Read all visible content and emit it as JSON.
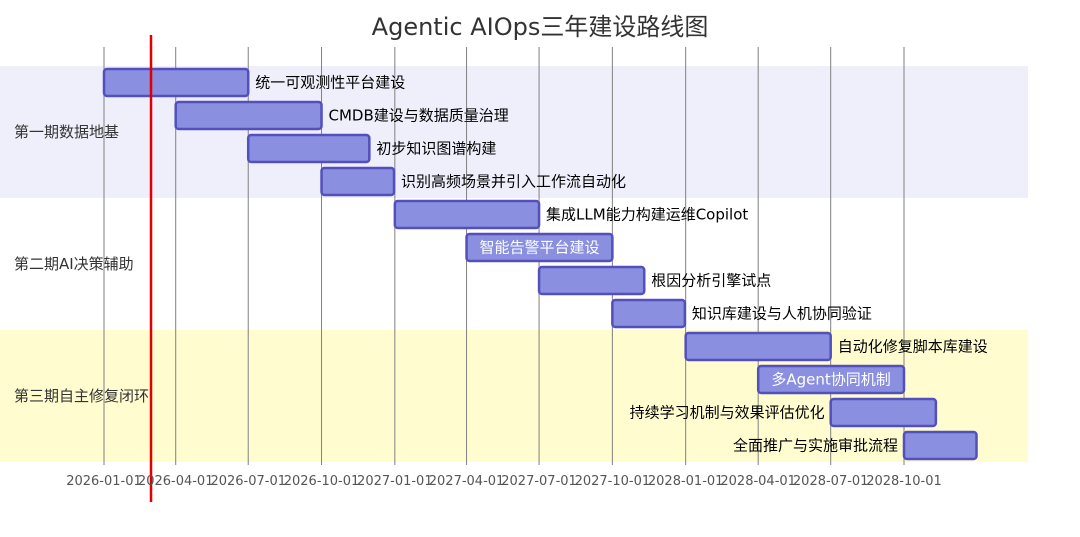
{
  "chart_data": {
    "type": "gantt",
    "title": "Agentic AIOps三年建设路线图",
    "today": "2026-03-01",
    "axis": {
      "start": "2026-01-01",
      "end": "2028-11-15",
      "ticks": [
        "2026-01-01",
        "2026-04-01",
        "2026-07-01",
        "2026-10-01",
        "2027-01-01",
        "2027-04-01",
        "2027-07-01",
        "2027-10-01",
        "2028-01-01",
        "2028-04-01",
        "2028-07-01",
        "2028-10-01"
      ]
    },
    "sections": [
      {
        "name": "第一期数据地基",
        "color": "#efeefb",
        "tasks": [
          {
            "name": "统一可观测性平台建设",
            "start": "2026-01-01",
            "end": "2026-07-01",
            "label_inside": false
          },
          {
            "name": "CMDB建设与数据质量治理",
            "start": "2026-04-01",
            "end": "2026-10-01",
            "label_inside": false
          },
          {
            "name": "初步知识图谱构建",
            "start": "2026-07-01",
            "end": "2026-11-30",
            "label_inside": false
          },
          {
            "name": "识别高频场景并引入工作流自动化",
            "start": "2026-10-01",
            "end": "2026-12-31",
            "label_inside": false
          }
        ]
      },
      {
        "name": "第二期AI决策辅助",
        "color": "#ffffff",
        "tasks": [
          {
            "name": "集成LLM能力构建运维Copilot",
            "start": "2027-01-01",
            "end": "2027-07-01",
            "label_inside": false
          },
          {
            "name": "智能告警平台建设",
            "start": "2027-04-01",
            "end": "2027-10-01",
            "label_inside": true
          },
          {
            "name": "根因分析引擎试点",
            "start": "2027-07-01",
            "end": "2027-11-10",
            "label_inside": false
          },
          {
            "name": "知识库建设与人机协同验证",
            "start": "2027-10-01",
            "end": "2027-12-31",
            "label_inside": false
          }
        ]
      },
      {
        "name": "第三期自主修复闭环",
        "color": "#fffdd0",
        "tasks": [
          {
            "name": "自动化修复脚本库建设",
            "start": "2028-01-01",
            "end": "2028-07-01",
            "label_inside": false
          },
          {
            "name": "多Agent协同机制",
            "start": "2028-04-01",
            "end": "2028-10-01",
            "label_inside": true
          },
          {
            "name": "持续学习机制与效果评估优化",
            "start": "2028-07-01",
            "end": "2028-11-10",
            "label_inside": false,
            "label_left": true
          },
          {
            "name": "全面推广与实施审批流程",
            "start": "2028-10-01",
            "end": "2028-12-31",
            "label_inside": false,
            "label_left": true
          }
        ]
      }
    ],
    "colors": {
      "bar_fill": "#8a8fe0",
      "bar_stroke": "#534fbc",
      "grid": "#808080",
      "today_line": "#e00000"
    }
  }
}
